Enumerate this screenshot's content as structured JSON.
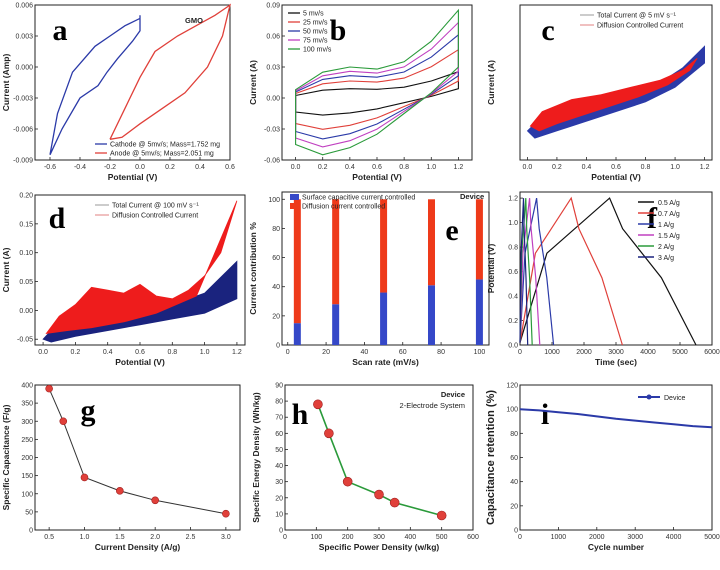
{
  "figure": {
    "width": 720,
    "height": 570
  },
  "chart_data": [
    {
      "id": "a",
      "panel_label": "a",
      "type": "line",
      "annotation": "GMO",
      "xlabel": "Potential (V)",
      "ylabel": "Current (Amp)",
      "xlim": [
        -0.7,
        0.6
      ],
      "ylim": [
        -0.009,
        0.006
      ],
      "xticks": [
        -0.6,
        -0.4,
        -0.2,
        0.0,
        0.2,
        0.4,
        0.6
      ],
      "xtick_labels": [
        "-0.6",
        "-0.4",
        "-0.2",
        "0.0",
        "0.2",
        "0.4",
        "0.6"
      ],
      "yticks": [
        -0.009,
        -0.006,
        -0.003,
        0.0,
        0.003,
        0.006
      ],
      "ytick_labels": [
        "-0.009",
        "-0.006",
        "-0.003",
        "0.000",
        "0.003",
        "0.006"
      ],
      "legend": "bottom-right",
      "series": [
        {
          "name": "Cathode @ 5mv/s; Mass=1.752 mg",
          "color": "#2b3aa8",
          "x": [
            -0.6,
            -0.55,
            -0.45,
            -0.3,
            -0.2,
            -0.1,
            0.0,
            0.0,
            0.0,
            -0.05,
            -0.15,
            -0.22,
            -0.28,
            -0.4,
            -0.52,
            -0.6
          ],
          "y": [
            -0.0085,
            -0.0045,
            -0.0005,
            0.002,
            0.003,
            0.004,
            0.0047,
            0.005,
            0.0035,
            0.0025,
            0.0008,
            -0.0005,
            -0.0018,
            -0.003,
            -0.006,
            -0.0085
          ]
        },
        {
          "name": "Anode @ 5mv/s; Mass=2.051 mg",
          "color": "#e0403a",
          "x": [
            -0.2,
            -0.1,
            0.0,
            0.1,
            0.25,
            0.4,
            0.5,
            0.58,
            0.6,
            0.55,
            0.45,
            0.3,
            0.15,
            0.0,
            -0.12,
            -0.2
          ],
          "y": [
            -0.007,
            -0.004,
            -0.001,
            0.0015,
            0.003,
            0.0042,
            0.005,
            0.0058,
            0.006,
            0.003,
            0.0,
            -0.0025,
            -0.004,
            -0.0055,
            -0.0068,
            -0.007
          ]
        }
      ]
    },
    {
      "id": "b",
      "panel_label": "b",
      "type": "line",
      "xlabel": "Potential (V)",
      "ylabel": "Current (A)",
      "xlim": [
        -0.1,
        1.3
      ],
      "ylim": [
        -0.06,
        0.09
      ],
      "xticks": [
        0.0,
        0.2,
        0.4,
        0.6,
        0.8,
        1.0,
        1.2
      ],
      "xtick_labels": [
        "0.0",
        "0.2",
        "0.4",
        "0.6",
        "0.8",
        "1.0",
        "1.2"
      ],
      "yticks": [
        -0.06,
        -0.03,
        0.0,
        0.03,
        0.06,
        0.09
      ],
      "ytick_labels": [
        "-0.06",
        "-0.03",
        "0.00",
        "0.03",
        "0.06",
        "0.09"
      ],
      "legend": "top-left",
      "series": [
        {
          "name": "5 mv/s",
          "color": "#111111",
          "scale": 0.3
        },
        {
          "name": "25 mv/s",
          "color": "#e0403a",
          "scale": 0.55
        },
        {
          "name": "50 mv/s",
          "color": "#2b3aa8",
          "scale": 0.72
        },
        {
          "name": "75 mv/s",
          "color": "#c040c0",
          "scale": 0.86
        },
        {
          "name": "100 mv/s",
          "color": "#2a9a3a",
          "scale": 1.0
        }
      ],
      "base_upper": {
        "x": [
          0.0,
          0.2,
          0.4,
          0.6,
          0.8,
          1.0,
          1.2
        ],
        "y": [
          0.008,
          0.025,
          0.03,
          0.028,
          0.035,
          0.055,
          0.085
        ]
      },
      "base_lower": {
        "x": [
          0.0,
          0.2,
          0.4,
          0.6,
          0.8,
          1.0,
          1.2
        ],
        "y": [
          -0.045,
          -0.055,
          -0.048,
          -0.035,
          -0.015,
          0.005,
          0.03
        ]
      }
    },
    {
      "id": "c",
      "panel_label": "c",
      "type": "area",
      "xlabel": "Potential (V)",
      "ylabel": "Current (A)",
      "xlim": [
        -0.05,
        1.25
      ],
      "ylim": [
        -0.012,
        0.02
      ],
      "xticks": [
        0.0,
        0.2,
        0.4,
        0.6,
        0.8,
        1.0,
        1.2
      ],
      "xtick_labels": [
        "0.0",
        "0.2",
        "0.4",
        "0.6",
        "0.8",
        "1.0",
        "1.2"
      ],
      "legend": "top-right",
      "series": [
        {
          "name": "Total Current @ 5 mV s⁻¹",
          "color": "#2b3aa8",
          "x": [
            0.0,
            0.1,
            0.3,
            0.5,
            0.7,
            0.9,
            1.05,
            1.2,
            1.2,
            1.0,
            0.8,
            0.6,
            0.4,
            0.2,
            0.05,
            0.0
          ],
          "y": [
            -0.006,
            -0.003,
            -0.001,
            0.0005,
            0.002,
            0.004,
            0.007,
            0.0115,
            0.008,
            0.003,
            0.0,
            -0.002,
            -0.004,
            -0.006,
            -0.0075,
            -0.006
          ]
        },
        {
          "name": "Diffusion Controlled Current",
          "color": "#ee1c1c",
          "x": [
            0.02,
            0.1,
            0.3,
            0.5,
            0.7,
            0.9,
            1.05,
            1.15,
            1.1,
            0.95,
            0.75,
            0.55,
            0.35,
            0.2,
            0.08,
            0.02
          ],
          "y": [
            -0.005,
            -0.002,
            0.0005,
            0.0015,
            0.003,
            0.0045,
            0.0065,
            0.009,
            0.0065,
            0.0035,
            0.001,
            -0.001,
            -0.003,
            -0.0045,
            -0.006,
            -0.005
          ]
        }
      ]
    },
    {
      "id": "d",
      "panel_label": "d",
      "type": "area",
      "xlabel": "Potential (V)",
      "ylabel": "Current (A)",
      "xlim": [
        -0.05,
        1.25
      ],
      "ylim": [
        -0.06,
        0.2
      ],
      "xticks": [
        0.0,
        0.2,
        0.4,
        0.6,
        0.8,
        1.0,
        1.2
      ],
      "xtick_labels": [
        "0.0",
        "0.2",
        "0.4",
        "0.6",
        "0.8",
        "1.0",
        "1.2"
      ],
      "yticks": [
        -0.05,
        0.0,
        0.05,
        0.1,
        0.15,
        0.2
      ],
      "ytick_labels": [
        "-0.05",
        "0.00",
        "0.05",
        "0.10",
        "0.15",
        "0.20"
      ],
      "legend": "top-right",
      "series": [
        {
          "name": "Total Current @ 100 mV s⁻¹",
          "color": "#1a237e",
          "x": [
            0.0,
            0.1,
            0.3,
            0.5,
            0.7,
            0.9,
            1.0,
            1.2,
            1.2,
            1.0,
            0.8,
            0.6,
            0.4,
            0.2,
            0.05,
            0.0
          ],
          "y": [
            -0.05,
            -0.02,
            0.0,
            0.015,
            0.015,
            0.02,
            0.03,
            0.085,
            0.02,
            -0.005,
            -0.015,
            -0.025,
            -0.035,
            -0.045,
            -0.055,
            -0.05
          ]
        },
        {
          "name": "Diffusion Controlled Current",
          "color": "#ee1c1c",
          "x": [
            0.02,
            0.1,
            0.2,
            0.3,
            0.4,
            0.5,
            0.6,
            0.7,
            0.8,
            0.9,
            1.0,
            1.1,
            1.2,
            0.95,
            0.7,
            0.5,
            0.3,
            0.15,
            0.02
          ],
          "y": [
            -0.04,
            -0.01,
            0.01,
            0.04,
            0.035,
            0.03,
            0.045,
            0.025,
            0.02,
            0.035,
            0.06,
            0.1,
            0.19,
            0.025,
            -0.005,
            -0.02,
            -0.03,
            -0.035,
            -0.04
          ]
        }
      ]
    },
    {
      "id": "e",
      "panel_label": "e",
      "type": "bar",
      "annotation": "Device",
      "xlabel": "Scan rate (mV/s)",
      "ylabel": "Current contribution %",
      "xlim": [
        -3,
        105
      ],
      "ylim": [
        0,
        105
      ],
      "xticks": [
        0,
        20,
        40,
        60,
        80,
        100
      ],
      "xtick_labels": [
        "0",
        "20",
        "40",
        "60",
        "80",
        "100"
      ],
      "yticks": [
        0,
        20,
        40,
        60,
        80,
        100
      ],
      "ytick_labels": [
        "0",
        "20",
        "40",
        "60",
        "80",
        "100"
      ],
      "legend": "top-left",
      "categories": [
        5,
        25,
        50,
        75,
        100
      ],
      "series": [
        {
          "name": "Surface capacitive current controlled",
          "color": "#3548c8",
          "values": [
            15,
            28,
            36,
            41,
            45
          ]
        },
        {
          "name": "Diffusion current controlled",
          "color": "#ee3a1a",
          "values": [
            85,
            72,
            64,
            59,
            55
          ]
        }
      ]
    },
    {
      "id": "f",
      "panel_label": "f",
      "type": "line",
      "xlabel": "Time (sec)",
      "ylabel": "Potential (V)",
      "xlim": [
        0,
        6000
      ],
      "ylim": [
        0.0,
        1.25
      ],
      "xticks": [
        0,
        1000,
        2000,
        3000,
        4000,
        5000,
        6000
      ],
      "xtick_labels": [
        "0",
        "1000",
        "2000",
        "3000",
        "4000",
        "5000",
        "6000"
      ],
      "yticks": [
        0.0,
        0.2,
        0.4,
        0.6,
        0.8,
        1.0,
        1.2
      ],
      "ytick_labels": [
        "0.0",
        "0.2",
        "0.4",
        "0.6",
        "0.8",
        "1.0",
        "1.2"
      ],
      "legend": "top-right",
      "series": [
        {
          "name": "0.5 A/g",
          "color": "#111111",
          "t_charge": 2800,
          "t_end": 5500
        },
        {
          "name": "0.7 A/g",
          "color": "#e0403a",
          "t_charge": 1600,
          "t_end": 3200
        },
        {
          "name": "1 A/g",
          "color": "#2b3aa8",
          "t_charge": 520,
          "t_end": 1050
        },
        {
          "name": "1.5  A/g",
          "color": "#c040c0",
          "t_charge": 300,
          "t_end": 620
        },
        {
          "name": "2 A/g",
          "color": "#2a9a3a",
          "t_charge": 180,
          "t_end": 380
        },
        {
          "name": "3 A/g",
          "color": "#1a237e",
          "t_charge": 110,
          "t_end": 240
        }
      ]
    },
    {
      "id": "g",
      "panel_label": "g",
      "type": "line",
      "xlabel": "Current Density (A/g)",
      "ylabel": "Specific Capacitance (F/g)",
      "xlim": [
        0.3,
        3.2
      ],
      "ylim": [
        0,
        400
      ],
      "xticks": [
        0.5,
        1.0,
        1.5,
        2.0,
        2.5,
        3.0
      ],
      "xtick_labels": [
        "0.5",
        "1.0",
        "1.5",
        "2.0",
        "2.5",
        "3.0"
      ],
      "yticks": [
        0,
        50,
        100,
        150,
        200,
        250,
        300,
        350,
        400
      ],
      "ytick_labels": [
        "0",
        "50",
        "100",
        "150",
        "200",
        "250",
        "300",
        "350",
        "400"
      ],
      "series": [
        {
          "name": "",
          "color": "#333333",
          "marker": "#e0403a",
          "x": [
            0.5,
            0.7,
            1.0,
            1.5,
            2.0,
            3.0
          ],
          "y": [
            390,
            300,
            145,
            108,
            82,
            45
          ]
        }
      ]
    },
    {
      "id": "h",
      "panel_label": "h",
      "type": "line",
      "annotation": "Device",
      "subannotation": "2-Electrode System",
      "xlabel": "Specific Power Density (w/kg)",
      "ylabel": "Specific Energy Density (Wh/kg)",
      "xlim": [
        0,
        600
      ],
      "ylim": [
        0,
        90
      ],
      "xticks": [
        0,
        100,
        200,
        300,
        400,
        500,
        600
      ],
      "xtick_labels": [
        "0",
        "100",
        "200",
        "300",
        "400",
        "500",
        "600"
      ],
      "yticks": [
        0,
        10,
        20,
        30,
        40,
        50,
        60,
        70,
        80,
        90
      ],
      "ytick_labels": [
        "0",
        "10",
        "20",
        "30",
        "40",
        "50",
        "60",
        "70",
        "80",
        "90"
      ],
      "series": [
        {
          "name": "",
          "color": "#2a9a3a",
          "marker": "#e0403a",
          "x": [
            105,
            140,
            200,
            300,
            350,
            500
          ],
          "y": [
            78,
            60,
            30,
            22,
            17,
            9
          ]
        }
      ]
    },
    {
      "id": "i",
      "panel_label": "i",
      "type": "line",
      "xlabel": "Cycle number",
      "ylabel": "Capacitance retention (%)",
      "xlim": [
        0,
        5000
      ],
      "ylim": [
        0,
        120
      ],
      "xticks": [
        0,
        1000,
        2000,
        3000,
        4000,
        5000
      ],
      "xtick_labels": [
        "0",
        "1000",
        "2000",
        "3000",
        "4000",
        "5000"
      ],
      "yticks": [
        0,
        20,
        40,
        60,
        80,
        100,
        120
      ],
      "ytick_labels": [
        "0",
        "20",
        "40",
        "60",
        "80",
        "100",
        "120"
      ],
      "legend": "top-right",
      "series": [
        {
          "name": "Device",
          "color": "#2b3aa8",
          "x": [
            0,
            500,
            1000,
            1500,
            2000,
            2500,
            3000,
            3500,
            4000,
            4500,
            5000
          ],
          "y": [
            100,
            99,
            97.5,
            96,
            94,
            92,
            90.5,
            89,
            87.5,
            86,
            85
          ]
        }
      ]
    }
  ]
}
